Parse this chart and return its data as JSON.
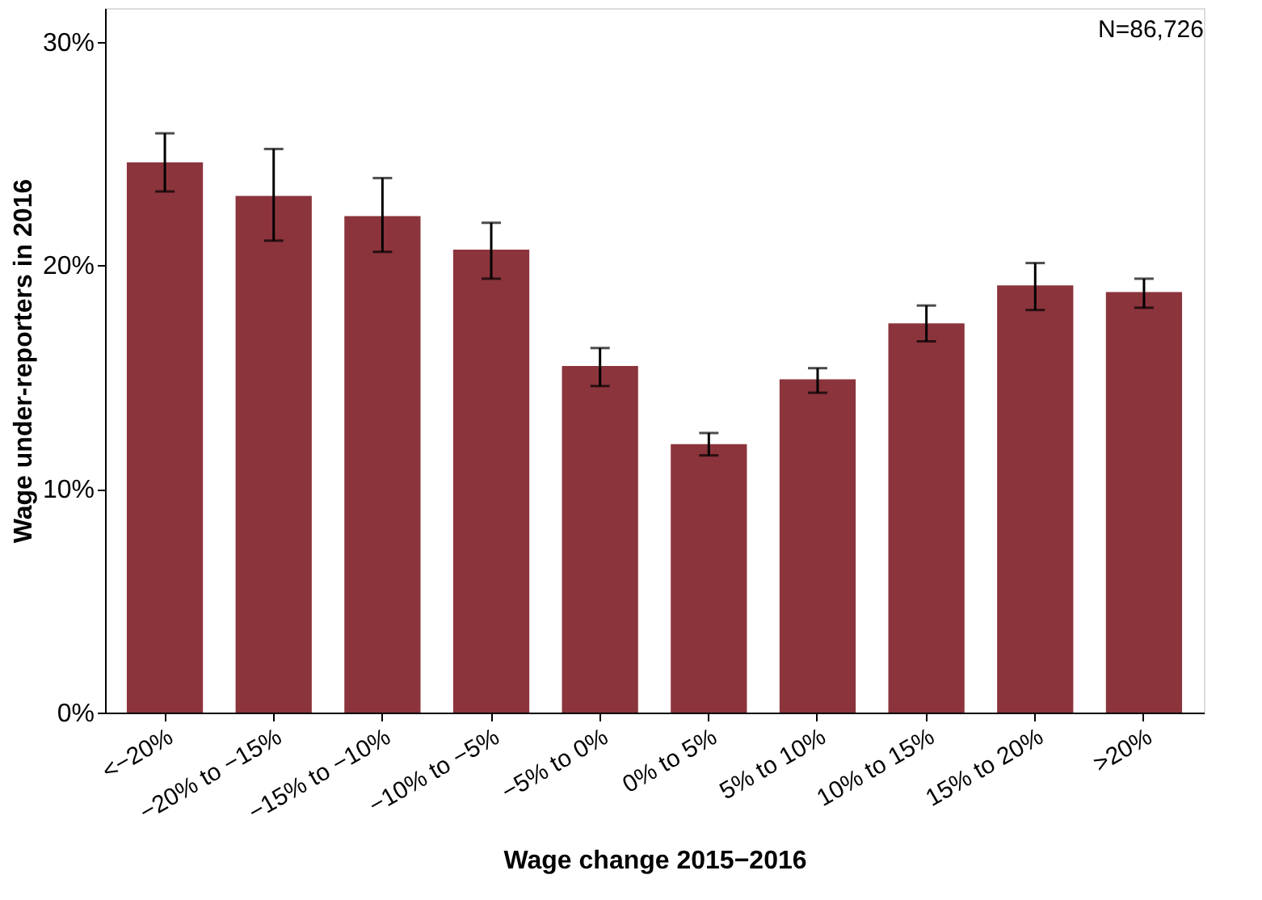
{
  "chart_data": {
    "type": "bar",
    "xlabel": "Wage change 2015−2016",
    "ylabel": "Wage under-reporters in 2016",
    "categories": [
      "<−20%",
      "−20% to −15%",
      "−15% to −10%",
      "−10% to −5%",
      "−5% to 0%",
      "0% to 5%",
      "5% to 10%",
      "10% to 15%",
      "15% to 20%",
      ">20%"
    ],
    "values": [
      24.6,
      23.1,
      22.2,
      20.7,
      15.5,
      12.0,
      14.9,
      17.4,
      19.1,
      18.8
    ],
    "errors": [
      [
        23.3,
        25.9
      ],
      [
        21.1,
        25.2
      ],
      [
        20.6,
        23.9
      ],
      [
        19.4,
        21.9
      ],
      [
        14.6,
        16.3
      ],
      [
        11.5,
        12.5
      ],
      [
        14.3,
        15.4
      ],
      [
        16.6,
        18.2
      ],
      [
        18.0,
        20.1
      ],
      [
        18.1,
        19.4
      ]
    ],
    "color": "#8b343c",
    "ylim": [
      0,
      31.5
    ],
    "yticks": [
      {
        "value": 0,
        "label": "0%"
      },
      {
        "value": 10,
        "label": "10%"
      },
      {
        "value": 20,
        "label": "20%"
      },
      {
        "value": 30,
        "label": "30%"
      }
    ],
    "grid": false,
    "annotations": [
      "N=86,726"
    ]
  }
}
